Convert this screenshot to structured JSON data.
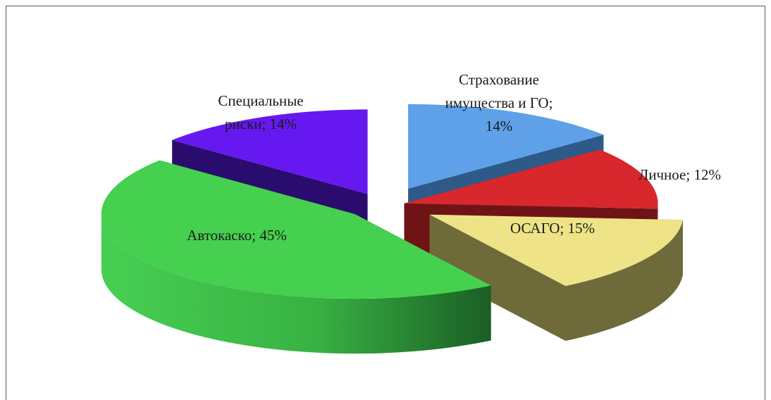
{
  "chart_data": {
    "type": "pie",
    "style": "3d-exploded",
    "slices": [
      {
        "label": "Страхование имущества и ГО",
        "value": 14,
        "pct": "14%",
        "color": "#5ea1e8",
        "side_color": "#2e5a8a"
      },
      {
        "label": "Личное",
        "value": 12,
        "pct": "12%",
        "color": "#d8282d",
        "side_color": "#6e1416"
      },
      {
        "label": "ОСАГО",
        "value": 15,
        "pct": "15%",
        "color": "#eee487",
        "side_color": "#6f6a3a"
      },
      {
        "label": "Автокаско",
        "value": 45,
        "pct": "45%",
        "color": "#45d04f",
        "side_color": "#1f6e2a"
      },
      {
        "label": "Специальные риски",
        "value": 14,
        "pct": "14%",
        "color": "#6618f0",
        "side_color": "#2a0c6e"
      }
    ],
    "labels": {
      "imushchestvo": {
        "line1": "Страхование",
        "line2": "имущества и ГО;",
        "line3": "14%"
      },
      "lichnoe": {
        "line1": "Личное; 12%"
      },
      "osago": {
        "line1": "ОСАГО; 15%"
      },
      "avtokasko": {
        "line1": "Автокаско; 45%"
      },
      "specialnye": {
        "line1": "Специальные",
        "line2": "риски; 14%"
      }
    }
  }
}
